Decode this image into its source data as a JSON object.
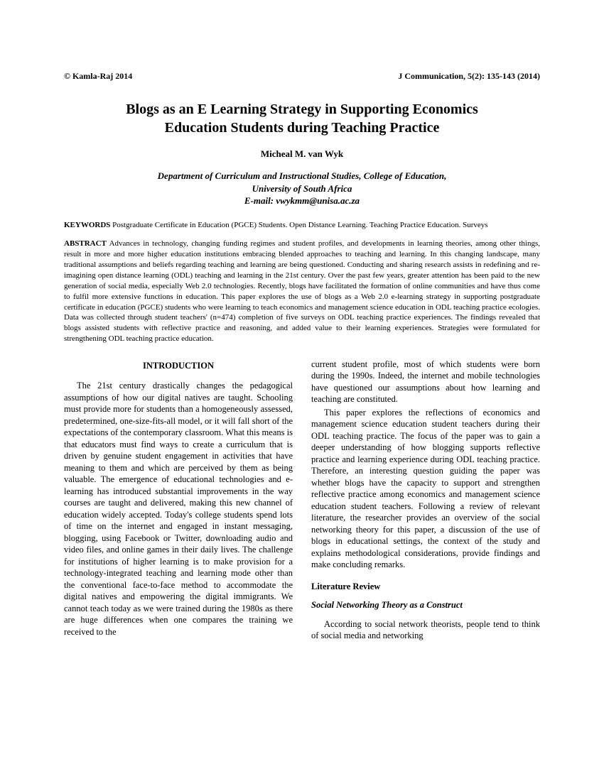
{
  "header": {
    "left": "© Kamla-Raj 2014",
    "right": "J Communication, 5(2): 135-143 (2014)"
  },
  "title_line1": "Blogs as an E Learning Strategy in Supporting Economics",
  "title_line2": "Education Students during Teaching Practice",
  "author": "Micheal M. van Wyk",
  "affiliation_line1": "Department of Curriculum and Instructional Studies, College of Education,",
  "affiliation_line2": "University of South Africa",
  "affiliation_line3": "E-mail: vwykmm@unisa.ac.za",
  "keywords_label": "KEYWORDS",
  "keywords_text": " Postgraduate Certificate in Education (PGCE) Students. Open Distance Learning. Teaching Practice Education. Surveys",
  "abstract_label": "ABSTRACT",
  "abstract_text": " Advances in technology, changing funding regimes and student profiles, and developments in learning theories, among other things, result in more and more higher education institutions embracing blended approaches to teaching and learning. In this changing landscape, many traditional assumptions and beliefs regarding teaching and learning are being questioned. Conducting and sharing research assists in redefining and re-imagining open distance learning (ODL) teaching and learning in the 21st century. Over the past few years, greater attention has been paid to the new generation of social media, especially Web 2.0 technologies. Recently, blogs have facilitated the formation of online communities and have thus come to fulfil more extensive functions in education. This paper explores the use of blogs as a Web 2.0 e-learning strategy in supporting postgraduate certificate in education (PGCE) students who were learning to teach economics and management science education in ODL teaching practice ecologies. Data was collected through student teachers' (n=474) completion of five surveys on ODL teaching practice experiences. The findings revealed that blogs assisted students with reflective practice and reasoning, and added value to their learning experiences. Strategies were formulated for strengthening ODL teaching practice education.",
  "intro_heading": "INTRODUCTION",
  "intro_para": "The 21st century drastically changes the pedagogical assumptions of how our digital natives are taught. Schooling must provide more for students than a homogeneously assessed, predetermined, one-size-fits-all model, or it will fall short of the expectations of the contemporary classroom. What this means is that educators must find ways to create a curriculum that is driven by genuine student engagement in activities that have meaning to them and which are perceived by them as being valuable. The emergence of educational technologies and e-learning has introduced substantial improvements in the way courses are taught and delivered, making this new channel of education widely accepted. Today's college students spend lots of time on the internet and engaged in instant messaging, blogging, using Facebook or Twitter, downloading audio and video files, and online games in their daily lives. The challenge for institutions of higher learning is to make provision for a technology-integrated teaching and learning mode other than the conventional face-to-face method to accommodate the digital natives and empowering the digital immigrants. We cannot teach today as we were trained during the 1980s as there are huge differences when one compares the training we received to the",
  "col2_para1": "current student profile, most of which students were born during the 1990s. Indeed, the internet and mobile technologies have questioned our assumptions about how learning and teaching are constituted.",
  "col2_para2": "This paper explores the reflections of economics and management science education student teachers during their ODL teaching practice. The focus of the paper was to gain a deeper understanding of how blogging supports reflective practice and learning experience during ODL teaching practice. Therefore, an interesting question guiding the paper was whether blogs have the capacity to support and strengthen reflective practice among economics and management science education student teachers. Following a review of relevant literature, the researcher provides an overview of the social networking theory for this paper, a discussion of the use of blogs in educational settings, the context of the study and explains methodological considerations, provide findings and make concluding remarks.",
  "lit_review_heading": "Literature Review",
  "social_theory_heading": "Social Networking Theory as a Construct",
  "social_theory_para": "According to social network theorists, people tend to think of social media and networking"
}
